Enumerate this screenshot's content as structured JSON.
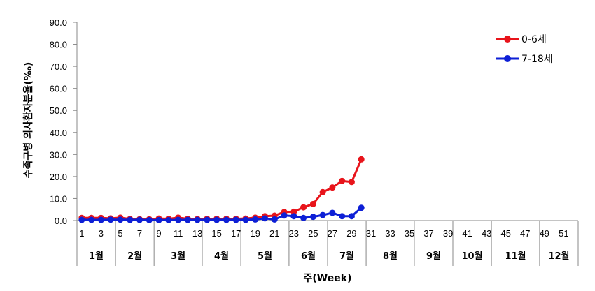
{
  "chart_data": {
    "type": "line",
    "xlabel": "주(Week)",
    "ylabel": "수족구병 의사환자분율(‰)",
    "ylim": [
      0,
      90
    ],
    "y_ticks": [
      "0.0",
      "10.0",
      "20.0",
      "30.0",
      "40.0",
      "50.0",
      "60.0",
      "70.0",
      "80.0",
      "90.0"
    ],
    "x_week_range": [
      1,
      53
    ],
    "week_tick_labels": [
      "1",
      "3",
      "5",
      "7",
      "9",
      "11",
      "13",
      "15",
      "17",
      "19",
      "21",
      "23",
      "25",
      "27",
      "29",
      "31",
      "33",
      "35",
      "37",
      "39",
      "41",
      "43",
      "45",
      "47",
      "49",
      "51"
    ],
    "months": [
      {
        "label": "1월",
        "start_week": 1,
        "end_week": 4
      },
      {
        "label": "2월",
        "start_week": 5,
        "end_week": 8
      },
      {
        "label": "3월",
        "start_week": 9,
        "end_week": 13
      },
      {
        "label": "4월",
        "start_week": 14,
        "end_week": 17
      },
      {
        "label": "5월",
        "start_week": 18,
        "end_week": 22
      },
      {
        "label": "6월",
        "start_week": 23,
        "end_week": 26
      },
      {
        "label": "7월",
        "start_week": 27,
        "end_week": 30
      },
      {
        "label": "8월",
        "start_week": 31,
        "end_week": 35
      },
      {
        "label": "9월",
        "start_week": 36,
        "end_week": 39
      },
      {
        "label": "10월",
        "start_week": 40,
        "end_week": 43
      },
      {
        "label": "11월",
        "start_week": 44,
        "end_week": 48
      },
      {
        "label": "12월",
        "start_week": 49,
        "end_week": 52
      }
    ],
    "x": [
      1,
      2,
      3,
      4,
      5,
      6,
      7,
      8,
      9,
      10,
      11,
      12,
      13,
      14,
      15,
      16,
      17,
      18,
      19,
      20,
      21,
      22,
      23,
      24,
      25,
      26,
      27,
      28,
      29,
      30
    ],
    "series": [
      {
        "name": "0-6세",
        "color": "#e8141b",
        "values": [
          1.2,
          1.2,
          1.2,
          1.0,
          1.3,
          0.7,
          0.6,
          0.6,
          0.9,
          0.8,
          1.3,
          0.8,
          0.7,
          0.8,
          0.8,
          0.8,
          0.8,
          0.9,
          1.3,
          2.0,
          2.2,
          3.9,
          4.0,
          6.0,
          7.5,
          12.9,
          15.0,
          18.0,
          17.5,
          27.8
        ]
      },
      {
        "name": "7-18세",
        "color": "#0d1fd6",
        "values": [
          0.3,
          0.3,
          0.3,
          0.4,
          0.4,
          0.3,
          0.3,
          0.2,
          0.2,
          0.2,
          0.3,
          0.3,
          0.3,
          0.3,
          0.3,
          0.3,
          0.3,
          0.3,
          0.5,
          1.0,
          0.5,
          2.3,
          2.0,
          1.2,
          1.7,
          2.5,
          3.5,
          2.0,
          2.0,
          5.8
        ]
      }
    ],
    "legend_position": "top-right",
    "grid": false
  }
}
